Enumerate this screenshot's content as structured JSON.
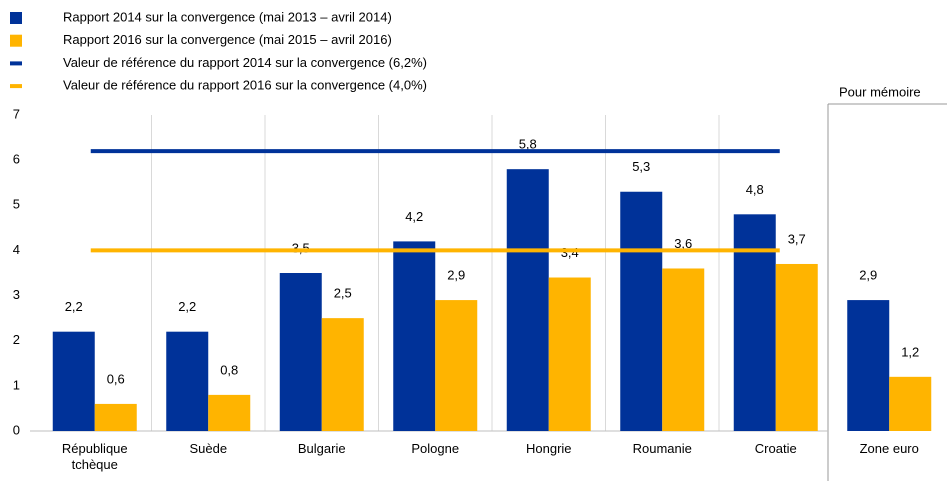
{
  "chart_data": {
    "type": "bar",
    "categories": [
      "République tchèque",
      "Suède",
      "Bulgarie",
      "Pologne",
      "Hongrie",
      "Roumanie",
      "Croatie",
      "Zone euro"
    ],
    "series": [
      {
        "name": "Rapport 2014 sur la convergence (mai 2013 – avril 2014)",
        "color": "#003299",
        "values": [
          2.2,
          2.2,
          3.5,
          4.2,
          5.8,
          5.3,
          4.8,
          2.9
        ],
        "value_labels": [
          "2,2",
          "2,2",
          "3,5",
          "4,2",
          "5,8",
          "5,3",
          "4,8",
          "2,9"
        ]
      },
      {
        "name": "Rapport 2016 sur la convergence (mai 2015 – avril 2016)",
        "color": "#ffb400",
        "values": [
          0.6,
          0.8,
          2.5,
          2.9,
          3.4,
          3.6,
          3.7,
          1.2
        ],
        "value_labels": [
          "0,6",
          "0,8",
          "2,5",
          "2,9",
          "3,4",
          "3,6",
          "3,7",
          "1,2"
        ]
      }
    ],
    "reference_lines": [
      {
        "name": "Valeur de référence du rapport 2014 sur la convergence (6,2%)",
        "color": "#003299",
        "value": 6.2
      },
      {
        "name": "Valeur de référence du rapport 2016 sur la convergence (4,0%)",
        "color": "#ffb400",
        "value": 4.0
      }
    ],
    "annotation": "Pour mémoire",
    "ylim": [
      0,
      7
    ],
    "yticks": [
      0,
      1,
      2,
      3,
      4,
      5,
      6,
      7
    ]
  }
}
